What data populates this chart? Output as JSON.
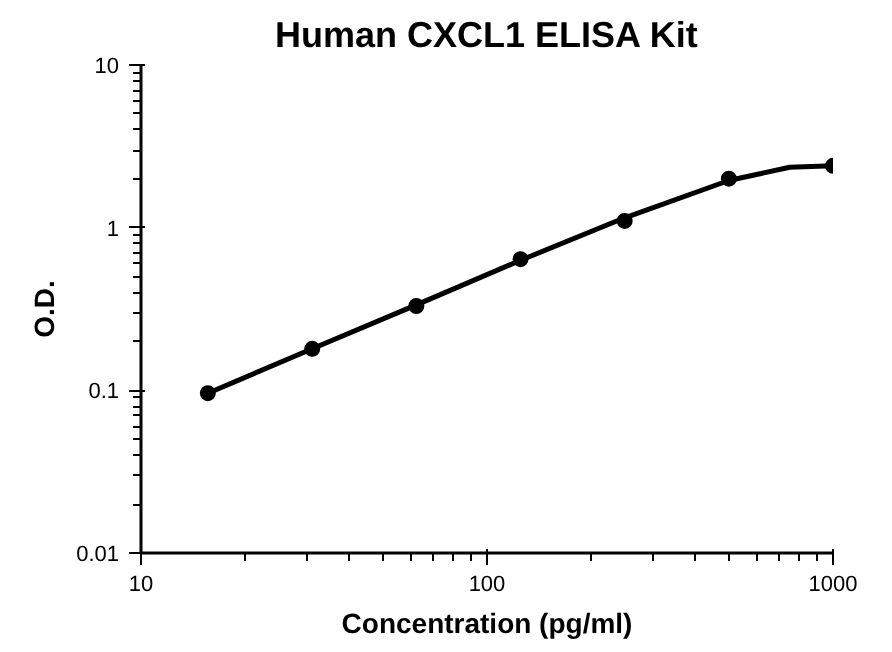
{
  "chart_data": {
    "type": "line",
    "title": "Human CXCL1 ELISA Kit",
    "xlabel": "Concentration (pg/ml)",
    "ylabel": "O.D.",
    "log": "xy",
    "grid": false,
    "xlim": [
      10,
      1000
    ],
    "ylim": [
      0.01,
      10
    ],
    "xticks": [
      10,
      100,
      1000
    ],
    "yticks": [
      0.01,
      0.1,
      1,
      10
    ],
    "series": [
      {
        "type": "scatter",
        "marker": "circle",
        "color": "#000000",
        "x": [
          15.6,
          31.25,
          62.5,
          125,
          250,
          500,
          1000
        ],
        "values": [
          0.096,
          0.18,
          0.33,
          0.64,
          1.1,
          2.0,
          2.4
        ]
      },
      {
        "color": "#000000",
        "line_style": "solid",
        "x": [
          15.6,
          31.25,
          62.5,
          125,
          250,
          500,
          750,
          1000
        ],
        "values": [
          0.096,
          0.18,
          0.335,
          0.63,
          1.15,
          1.95,
          2.35,
          2.4
        ]
      }
    ]
  }
}
